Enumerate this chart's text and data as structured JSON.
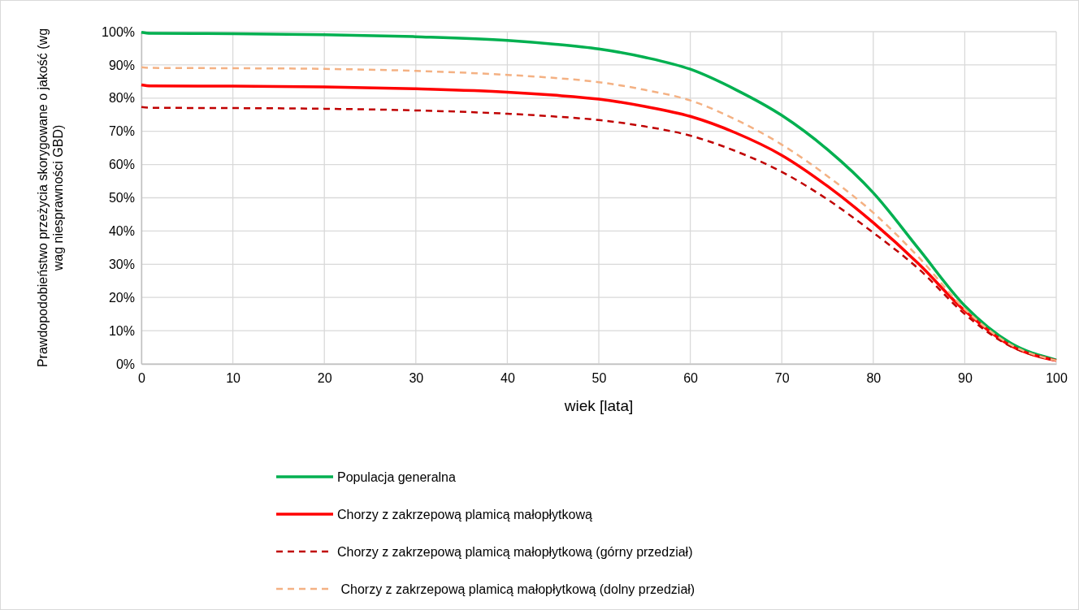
{
  "chart_data": {
    "type": "line",
    "xlabel": "wiek [lata]",
    "ylabel": "Prawdopodobieństwo przeżycia skorygowane o jakość (wg wag niesprawności GBD)",
    "x": [
      0,
      1,
      10,
      20,
      30,
      40,
      45,
      50,
      55,
      60,
      65,
      70,
      75,
      80,
      85,
      90,
      95,
      100
    ],
    "xlim": [
      0,
      100
    ],
    "xticks": [
      0,
      10,
      20,
      30,
      40,
      50,
      60,
      70,
      80,
      90,
      100
    ],
    "ylim": [
      0,
      100
    ],
    "yticks": [
      {
        "value": 0,
        "label": "0%"
      },
      {
        "value": 10,
        "label": "10%"
      },
      {
        "value": 20,
        "label": "20%"
      },
      {
        "value": 30,
        "label": "30%"
      },
      {
        "value": 40,
        "label": "40%"
      },
      {
        "value": 50,
        "label": "50%"
      },
      {
        "value": 60,
        "label": "60%"
      },
      {
        "value": 70,
        "label": "70%"
      },
      {
        "value": 80,
        "label": "80%"
      },
      {
        "value": 90,
        "label": "90%"
      },
      {
        "value": 100,
        "label": "100%"
      }
    ],
    "grid": true,
    "legend": "bottom",
    "marker": "none",
    "series": [
      {
        "name": "Populacja generalna",
        "color": "#00b050",
        "line_style": "solid",
        "values": [
          99.8,
          99.5,
          99.4,
          99.1,
          98.5,
          97.4,
          96.3,
          94.8,
          92.3,
          88.7,
          82.5,
          74.8,
          64.5,
          51.5,
          34.5,
          17.5,
          6.3,
          1.2
        ]
      },
      {
        "name": "Chorzy z zakrzepową plamicą małopłytkową",
        "color": "#ff0000",
        "line_style": "solid",
        "values": [
          84,
          83.7,
          83.6,
          83.4,
          82.8,
          81.8,
          80.9,
          79.7,
          77.5,
          74.5,
          69.5,
          62.8,
          53.5,
          42.5,
          30,
          16,
          5.5,
          1
        ]
      },
      {
        "name": "Chorzy z zakrzepową plamicą małopłytkową (górny przedział)",
        "color": "#c00000",
        "line_style": "dashed",
        "values": [
          77.3,
          77.1,
          77,
          76.8,
          76.3,
          75.3,
          74.5,
          73.4,
          71.5,
          68.7,
          64,
          57.8,
          49.5,
          39.5,
          28.5,
          15,
          5.3,
          1
        ]
      },
      {
        "name": " Chorzy z zakrzepową plamicą małopłytkową (dolny przedział)",
        "color": "#f4b183",
        "line_style": "dashed",
        "values": [
          89.3,
          89.1,
          89,
          88.8,
          88.2,
          87,
          86.1,
          84.8,
          82.5,
          79.3,
          73.5,
          66,
          56.5,
          45.5,
          32,
          16.5,
          5.8,
          1
        ]
      }
    ]
  }
}
